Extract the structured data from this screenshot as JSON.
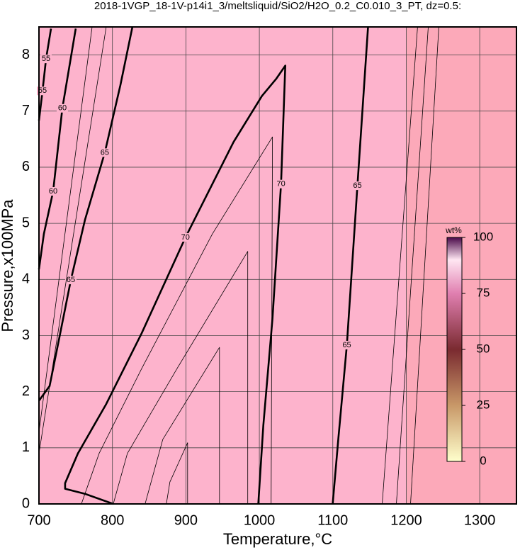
{
  "chart_data": {
    "type": "contour",
    "title": "2018-1VGP_18-1V-p14i1_3/meltsliquid/SiO2/H2O_0.2_C0.010_3_PT, dz=0.5:",
    "x_label": "Temperature,°C",
    "y_label": "Pressure,x100MPa",
    "xlim": [
      700,
      1350
    ],
    "ylim": [
      0,
      8.5
    ],
    "xticks": [
      700,
      800,
      900,
      1000,
      1100,
      1200,
      1300
    ],
    "yticks": [
      0,
      1,
      2,
      3,
      4,
      5,
      6,
      7,
      8
    ],
    "grid": true,
    "background": [
      {
        "from": 700,
        "to": 1200,
        "color": "#fdb3cc"
      },
      {
        "from": 1200,
        "to": 1350,
        "color": "#fca9b9"
      }
    ],
    "contours": [
      {
        "level": 55,
        "bold": true,
        "x": [
          700,
          704.8,
          709.6,
          716.4
        ],
        "y": [
          6.83,
          7.36,
          7.93,
          8.47
        ],
        "label_x": [
          704.8,
          709.6
        ],
        "label_y": [
          7.36,
          7.93
        ]
      },
      {
        "level": 60,
        "bold": true,
        "x": [
          700,
          706.7,
          719.3,
          731.8,
          750.1
        ],
        "y": [
          4.18,
          4.81,
          5.57,
          7.05,
          8.47
        ],
        "label_x": [
          719.3,
          731.8
        ],
        "label_y": [
          5.57,
          7.05
        ]
      },
      {
        "level": 65,
        "bold": true,
        "x": [
          700,
          714.5,
          728.9,
          743.4,
          762.6,
          789.6,
          810.8,
          827.2
        ],
        "y": [
          1.84,
          2.1,
          3.04,
          3.99,
          5.06,
          6.26,
          7.46,
          8.5
        ],
        "label_x": [
          743.4,
          789.6
        ],
        "label_y": [
          3.99,
          6.26
        ]
      },
      {
        "level": 70,
        "bold": true,
        "x": [
          998.6,
          1005.4,
          1017.9,
          1029.5,
          1035.3,
          1022.7,
          1003.5,
          964.9,
          899.4,
          839.7,
          791.5,
          753.0,
          735.6,
          735.6,
          762.6,
          801.2
        ],
        "y": [
          0,
          1.4,
          3.3,
          5.7,
          7.81,
          7.57,
          7.27,
          6.45,
          4.75,
          3.04,
          1.78,
          0.9,
          0.37,
          0.27,
          0.18,
          0
        ],
        "label_x": [
          1029.5,
          899.4
        ],
        "label_y": [
          5.7,
          4.75
        ]
      },
      {
        "level": 65,
        "bold": true,
        "x": [
          1099.8,
          1107.5,
          1119.1,
          1133.5,
          1148.0
        ],
        "y": [
          0,
          1.15,
          2.83,
          5.67,
          8.5
        ],
        "label_x": [
          1119.1,
          1133.5
        ],
        "label_y": [
          2.83,
          5.67
        ]
      },
      {
        "bold": false,
        "x": [
          1016.0,
          1017.9,
          936.0,
          839.7,
          781.9,
          757.8
        ],
        "y": [
          0,
          6.54,
          4.81,
          2.41,
          0.9,
          0
        ]
      },
      {
        "bold": false,
        "x": [
          984.2,
          984.2,
          887.9,
          820.4,
          801.2
        ],
        "y": [
          0,
          4.5,
          2.41,
          0.9,
          0
        ]
      },
      {
        "bold": false,
        "x": [
          945.7,
          945.7,
          868.6,
          844.5
        ],
        "y": [
          0,
          2.79,
          1.15,
          0
        ]
      },
      {
        "bold": false,
        "x": [
          902.3,
          902.3,
          878.2,
          873.4
        ],
        "y": [
          0,
          1.09,
          0.39,
          0
        ]
      },
      {
        "bold": false,
        "x": [
          1167.2,
          1215.4
        ],
        "y": [
          0,
          8.5
        ]
      },
      {
        "bold": false,
        "x": [
          1186.5,
          1229.9
        ],
        "y": [
          0,
          8.5
        ]
      },
      {
        "bold": false,
        "x": [
          1205.8,
          1244.3
        ],
        "y": [
          0,
          8.5
        ]
      },
      {
        "bold": false,
        "x": [
          700,
          791.5
        ],
        "y": [
          0.9,
          8.5
        ]
      },
      {
        "bold": false,
        "x": [
          700,
          772.3
        ],
        "y": [
          1.28,
          8.5
        ]
      }
    ],
    "colorbar": {
      "title": "wt%",
      "lim": [
        0,
        100
      ],
      "ticks": [
        0,
        25,
        50,
        75,
        100
      ],
      "stops": [
        [
          0,
          "#ffffcc"
        ],
        [
          25,
          "#c89868"
        ],
        [
          50,
          "#7a2a30"
        ],
        [
          75,
          "#e07fb0"
        ],
        [
          90,
          "#ffe6f2"
        ],
        [
          100,
          "#4a0a4a"
        ]
      ]
    }
  }
}
